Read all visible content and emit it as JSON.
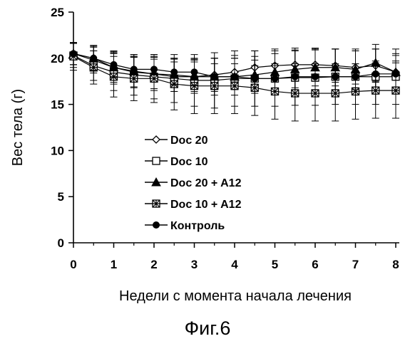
{
  "chart_data": {
    "type": "line",
    "title": "",
    "xlabel": "Недели с момента начала лечения",
    "ylabel": "Вес тела (г)",
    "xlim": [
      0,
      8
    ],
    "ylim": [
      0,
      25
    ],
    "x_ticks": [
      "0",
      "1",
      "2",
      "3",
      "4",
      "5",
      "6",
      "7",
      "8"
    ],
    "y_ticks": [
      "0",
      "5",
      "10",
      "15",
      "20",
      "25"
    ],
    "grid": false,
    "legend_placement": "lower-left",
    "x": [
      0,
      0.5,
      1,
      1.5,
      2,
      2.5,
      3,
      3.5,
      4,
      4.5,
      5,
      5.5,
      6,
      6.5,
      7,
      7.5,
      8
    ],
    "series": [
      {
        "name": "Doc 20",
        "marker": "diamond-open",
        "values": [
          20.5,
          19.8,
          19.0,
          18.5,
          18.3,
          18.0,
          18.0,
          18.2,
          18.5,
          19.0,
          19.2,
          19.3,
          19.3,
          19.2,
          19.0,
          19.2,
          18.5
        ],
        "errors": [
          1.2,
          1.4,
          1.6,
          1.6,
          1.6,
          1.6,
          1.6,
          1.8,
          1.8,
          1.8,
          1.8,
          1.8,
          1.8,
          1.8,
          1.8,
          1.8,
          1.8
        ]
      },
      {
        "name": "Doc 10",
        "marker": "square-open",
        "values": [
          20.3,
          19.2,
          18.5,
          18.2,
          18.0,
          17.8,
          17.6,
          17.6,
          17.8,
          17.8,
          17.8,
          17.9,
          17.9,
          18.0,
          18.0,
          18.0,
          18.0
        ],
        "errors": [
          1.3,
          1.6,
          2.0,
          2.2,
          2.4,
          2.6,
          2.8,
          3.0,
          3.0,
          3.0,
          3.0,
          3.0,
          3.0,
          3.0,
          3.0,
          3.0,
          3.0
        ]
      },
      {
        "name": "Doc 20 + A12",
        "marker": "triangle-filled",
        "values": [
          20.5,
          20.0,
          19.0,
          18.6,
          18.3,
          18.2,
          18.0,
          18.0,
          18.0,
          18.2,
          18.5,
          18.8,
          19.0,
          19.0,
          18.8,
          19.5,
          18.5
        ],
        "errors": [
          1.2,
          1.4,
          1.8,
          1.8,
          1.8,
          1.8,
          1.8,
          2.0,
          2.0,
          2.0,
          2.0,
          2.0,
          2.0,
          2.0,
          2.0,
          2.0,
          2.0
        ]
      },
      {
        "name": "Doc 10 + A12",
        "marker": "square-hatched",
        "values": [
          20.2,
          19.0,
          18.0,
          17.8,
          17.8,
          17.2,
          17.0,
          17.0,
          17.0,
          16.8,
          16.4,
          16.2,
          16.2,
          16.2,
          16.4,
          16.5,
          16.5
        ],
        "errors": [
          1.5,
          1.8,
          2.2,
          2.4,
          2.6,
          2.8,
          3.0,
          3.0,
          3.0,
          3.0,
          3.0,
          3.0,
          3.0,
          3.0,
          3.0,
          3.0,
          3.0
        ]
      },
      {
        "name": "Контроль",
        "marker": "circle-filled",
        "values": [
          20.5,
          20.0,
          19.3,
          18.8,
          18.8,
          18.5,
          18.5,
          18.0,
          18.0,
          17.8,
          17.8,
          18.0,
          18.0,
          18.0,
          18.0,
          18.3,
          18.3
        ],
        "errors": [
          1.2,
          1.3,
          1.4,
          1.4,
          1.4,
          1.4,
          1.4,
          1.4,
          1.4,
          1.4,
          1.4,
          1.4,
          1.4,
          1.4,
          1.4,
          1.4,
          1.4
        ]
      }
    ]
  },
  "figure_caption": "Фиг.6",
  "colors": {
    "ink": "#000000",
    "background": "#ffffff"
  }
}
